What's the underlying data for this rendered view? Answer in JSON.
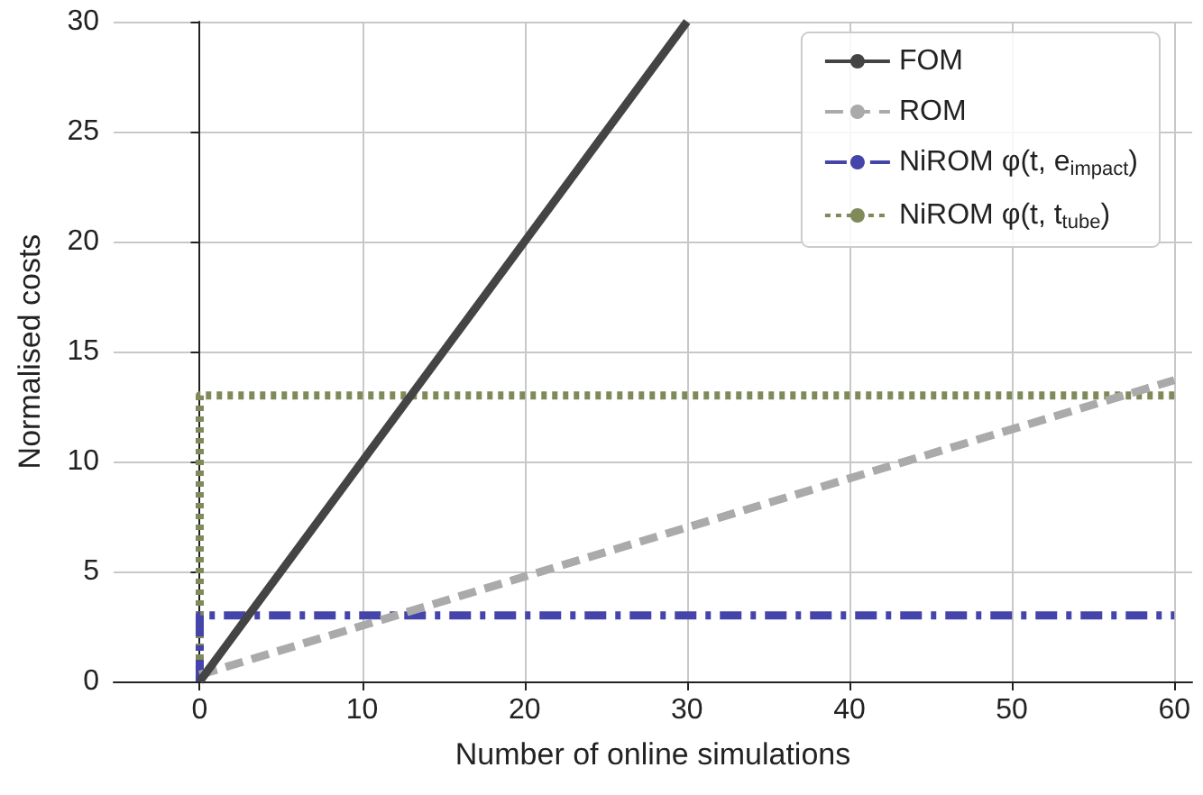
{
  "chart_data": {
    "type": "line",
    "xlabel": "Number of online simulations",
    "ylabel": "Normalised costs",
    "xlim": [
      -5.3,
      61.1
    ],
    "ylim": [
      0,
      30
    ],
    "xticks": [
      0,
      10,
      20,
      30,
      40,
      50,
      60
    ],
    "yticks": [
      0,
      5,
      10,
      15,
      20,
      25,
      30
    ],
    "grid": true,
    "legend": "top right",
    "series": [
      {
        "name": "FOM",
        "color": "#444444",
        "x": [
          0,
          30
        ],
        "values": [
          0,
          30
        ],
        "line_style": "solid"
      },
      {
        "name": "ROM",
        "color": "#aaaaaa",
        "x": [
          0,
          60
        ],
        "values": [
          0.3,
          13.7
        ],
        "line_style": "dashed"
      },
      {
        "name": "NiROM φ(t, e$_{impact}$)",
        "color": "#4444aa",
        "x": [
          0,
          0,
          60
        ],
        "values": [
          0,
          3,
          3
        ],
        "line_style": "dashed"
      },
      {
        "name": "NiROM φ(t, t$_{tube}$)",
        "color": "#7f8a5a",
        "x": [
          0,
          0,
          60
        ],
        "values": [
          0,
          13,
          13
        ],
        "line_style": "dotted"
      }
    ]
  }
}
